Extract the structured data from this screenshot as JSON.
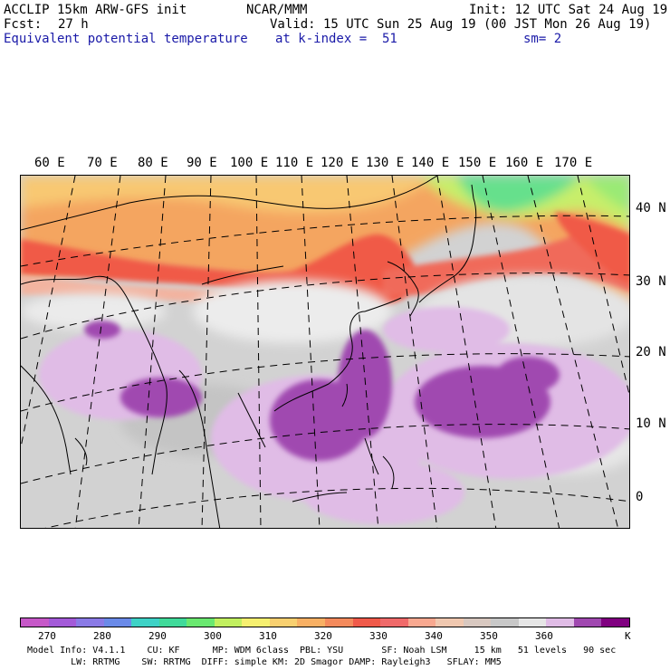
{
  "header": {
    "title": "ACCLIP 15km ARW-GFS init",
    "org": "NCAR/MMM",
    "init": "Init: 12 UTC Sat 24 Aug 19",
    "fcst_label": "Fcst:",
    "fcst_value": "27 h",
    "valid": "Valid: 15 UTC Sun 25 Aug 19 (00 JST Mon 26 Aug 19)",
    "field": "Equivalent potential temperature",
    "level": "at k-index =  51",
    "smooth": "sm= 2"
  },
  "map": {
    "lon_labels": [
      "60 E",
      "70 E",
      "80 E",
      "90 E",
      "100 E",
      "110 E",
      "120 E",
      "130 E",
      "140 E",
      "150 E",
      "160 E",
      "170 E"
    ],
    "lat_labels": [
      "40 N",
      "30 N",
      "20 N",
      "10 N",
      "0"
    ]
  },
  "colorbar": {
    "colors": [
      "#c658c8",
      "#a35ad8",
      "#8a7ae6",
      "#6a8ae8",
      "#3ed2c6",
      "#40da9a",
      "#6ae870",
      "#c2f060",
      "#f6f070",
      "#f8d070",
      "#f8b064",
      "#f48a5c",
      "#f05a4a",
      "#f06a6a",
      "#f8a890",
      "#f0c8b0",
      "#d8c8c0",
      "#c8c8c8",
      "#e6e6e6",
      "#e0bce6",
      "#a048b0",
      "#800080"
    ],
    "labels": [
      "270",
      "280",
      "290",
      "300",
      "310",
      "320",
      "330",
      "340",
      "350",
      "360"
    ],
    "unit": "K"
  },
  "footer": {
    "line1": "Model Info: V4.1.1    CU: KF      MP: WDM 6class  PBL: YSU       SF: Noah LSM     15 km   51 levels   90 sec",
    "line2": "        LW: RRTMG    SW: RRTMG  DIFF: simple KM: 2D Smagor DAMP: Rayleigh3   SFLAY: MM5"
  }
}
